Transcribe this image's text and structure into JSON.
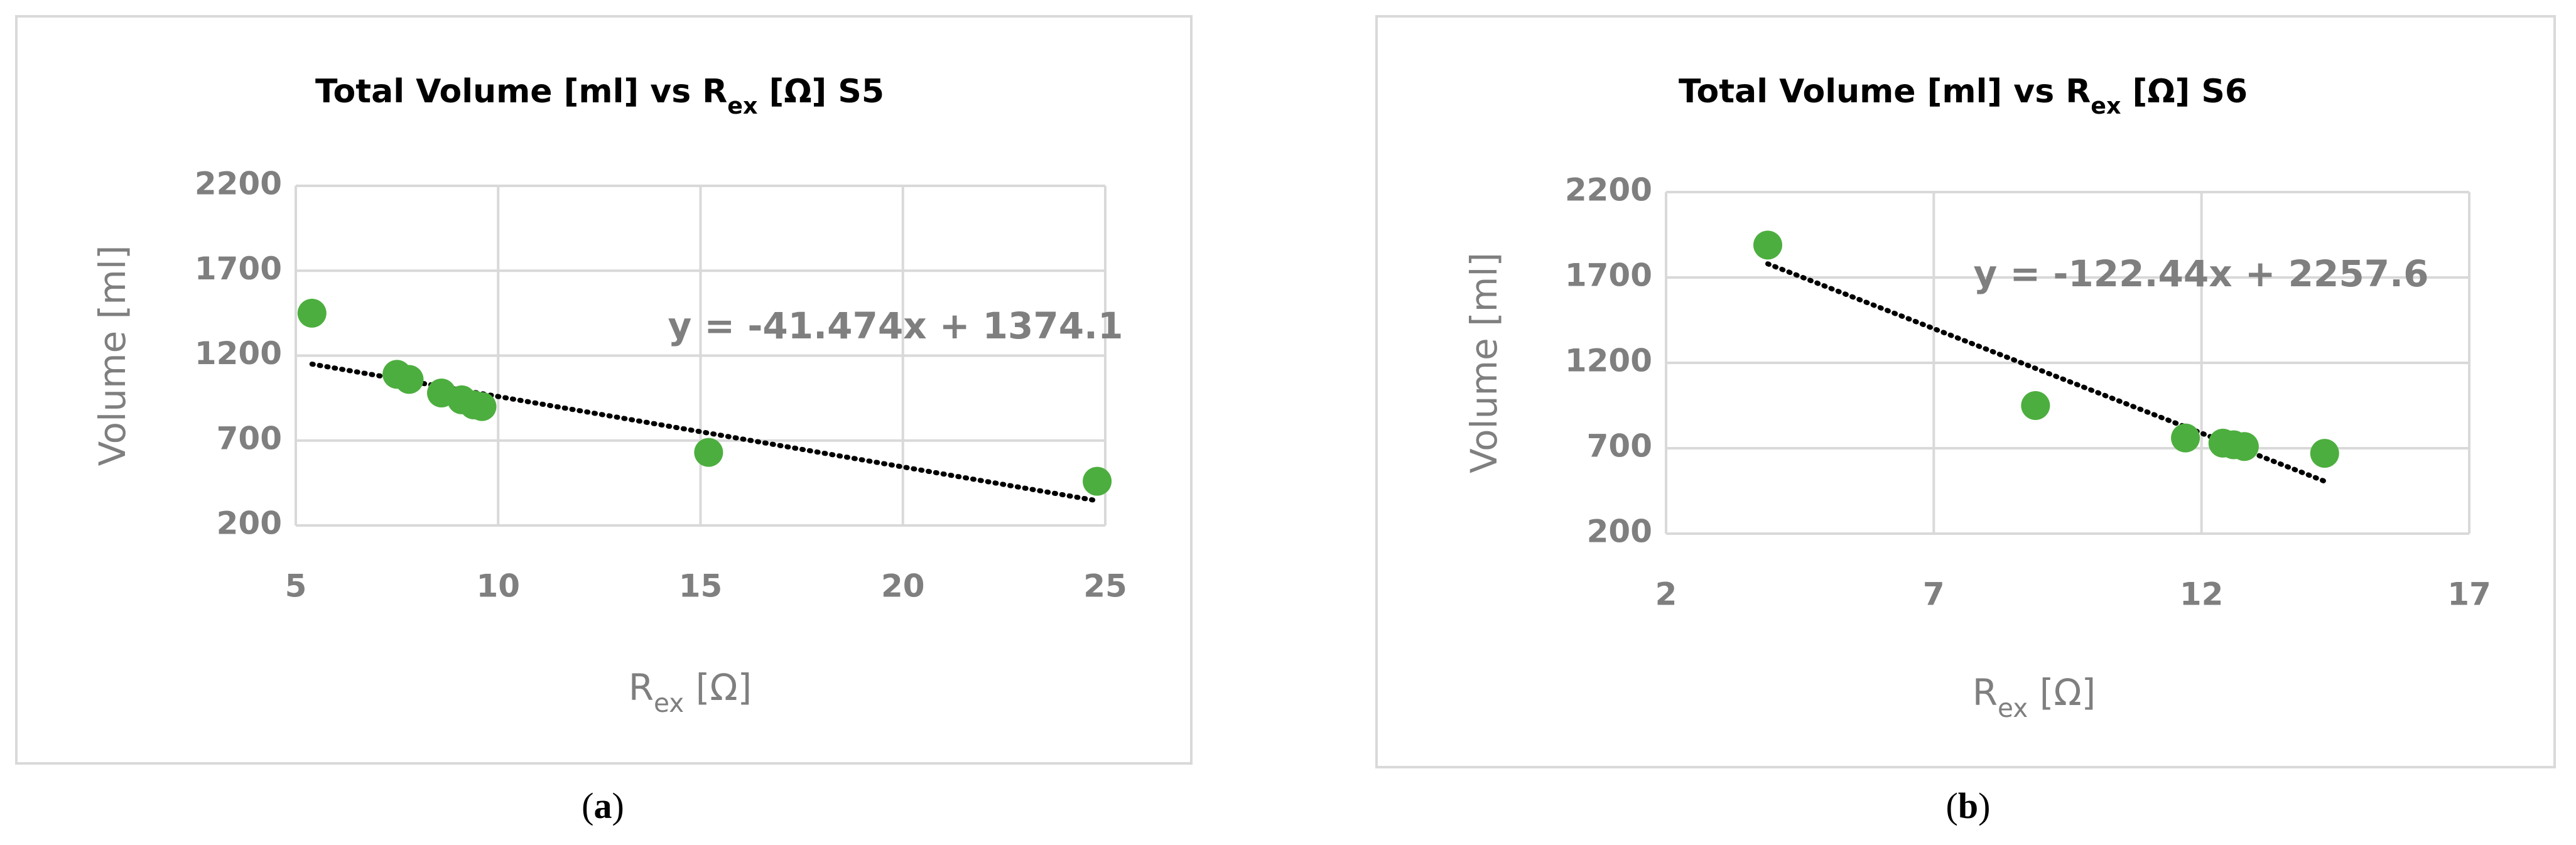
{
  "chart_data": [
    {
      "type": "scatter",
      "title": [
        "Total Volume [ml] vs R",
        "ex",
        " [Ω] S5"
      ],
      "xlabel": [
        "R",
        "ex",
        " [Ω]"
      ],
      "ylabel": "Volume [ml]",
      "series": [
        {
          "color": "#4cae3e",
          "x": [
            5.4,
            7.5,
            7.8,
            8.6,
            9.1,
            9.4,
            9.6,
            15.2,
            24.8
          ],
          "values": [
            1450,
            1090,
            1060,
            980,
            940,
            910,
            900,
            630,
            460
          ]
        }
      ],
      "trendline": {
        "slope": -41.474,
        "intercept": 1374.1,
        "label": "y = -41.474x + 1374.1",
        "color": "#000000"
      },
      "xlim": [
        5,
        25
      ],
      "xticks": [
        5,
        10,
        15,
        20,
        25
      ],
      "ylim": [
        200,
        2200
      ],
      "yticks": [
        200,
        700,
        1200,
        1700,
        2200
      ],
      "grid": true,
      "caption": [
        "(",
        "a",
        ")"
      ]
    },
    {
      "type": "scatter",
      "title": [
        "Total Volume [ml] vs R",
        "ex",
        " [Ω] S6"
      ],
      "xlabel": [
        "R",
        "ex",
        " [Ω]"
      ],
      "ylabel": "Volume [ml]",
      "series": [
        {
          "color": "#4cae3e",
          "x": [
            3.9,
            8.9,
            11.7,
            12.4,
            12.6,
            12.8,
            14.3
          ],
          "values": [
            1890,
            950,
            760,
            730,
            720,
            710,
            670
          ]
        }
      ],
      "trendline": {
        "slope": -122.44,
        "intercept": 2257.6,
        "label": "y = -122.44x + 2257.6",
        "color": "#000000"
      },
      "xlim": [
        2,
        17
      ],
      "xticks": [
        2,
        7,
        12,
        17
      ],
      "ylim": [
        200,
        2200
      ],
      "yticks": [
        200,
        700,
        1200,
        1700,
        2200
      ],
      "grid": true,
      "caption": [
        "(",
        "b",
        ")"
      ]
    }
  ]
}
